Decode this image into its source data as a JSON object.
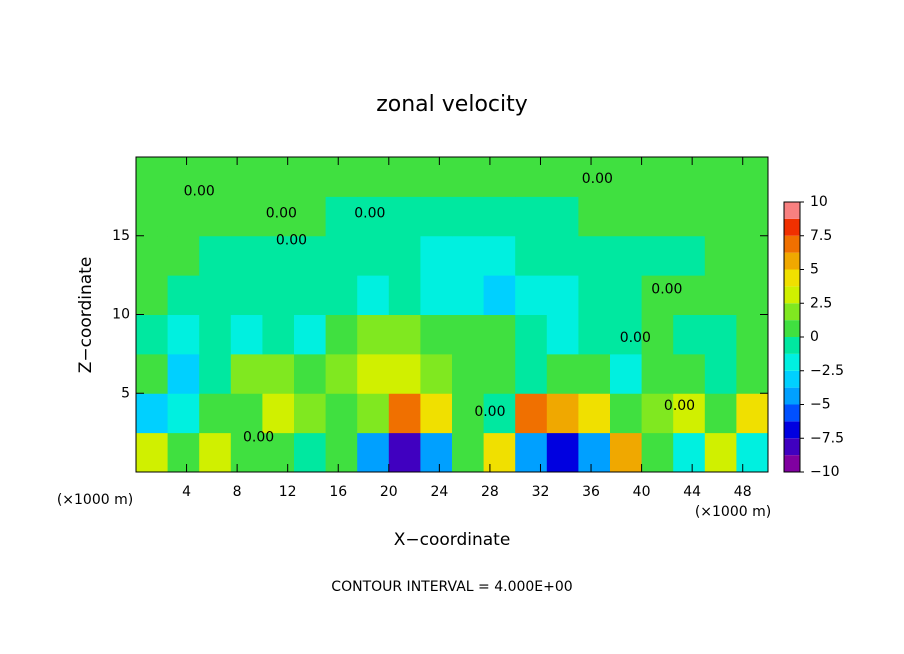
{
  "chart_data": {
    "type": "contour",
    "title": "zonal velocity",
    "xlabel": "X−coordinate",
    "ylabel": "Z−coordinate",
    "x_unit": "(×1000 m)",
    "y_unit": "(×1000 m)",
    "footer": "CONTOUR INTERVAL = 4.000E+00",
    "xlim": [
      0,
      50
    ],
    "ylim": [
      0,
      20
    ],
    "xticks": [
      4,
      8,
      12,
      16,
      20,
      24,
      28,
      32,
      36,
      40,
      44,
      48
    ],
    "yticks": [
      5,
      10,
      15
    ],
    "x": [
      1.25,
      3.75,
      6.25,
      8.75,
      11.25,
      13.75,
      16.25,
      18.75,
      21.25,
      23.75,
      26.25,
      28.75,
      31.25,
      33.75,
      36.25,
      38.75,
      41.25,
      43.75,
      46.25,
      48.75
    ],
    "y": [
      1.25,
      3.75,
      6.25,
      8.75,
      11.25,
      13.75,
      16.25,
      18.75
    ],
    "z": [
      [
        3,
        1,
        3,
        0,
        1,
        -1,
        0,
        -5,
        -8,
        -5,
        1,
        4,
        -5,
        -7,
        -4,
        5,
        0,
        -2,
        3,
        -2
      ],
      [
        -3,
        -2,
        0,
        1,
        3,
        2,
        0,
        2,
        7,
        4,
        1,
        -1,
        7,
        6,
        4,
        0,
        2,
        3,
        1,
        4
      ],
      [
        0,
        -3,
        -1,
        2,
        2,
        1,
        2,
        3,
        3,
        2,
        1,
        0,
        -1,
        1,
        0,
        -2,
        1,
        0,
        -1,
        0
      ],
      [
        -1,
        -2,
        -1,
        -2,
        -1,
        -2,
        1,
        2,
        2,
        1,
        1,
        0,
        -1,
        -2,
        -1,
        -1,
        0,
        -1,
        -1,
        0
      ],
      [
        0,
        -1,
        -1,
        -1,
        -1,
        -1,
        -1,
        -2,
        -1,
        -2,
        -2,
        -3,
        -2,
        -2,
        -1,
        -1,
        1,
        1,
        0,
        1
      ],
      [
        1,
        0,
        -1,
        -1,
        -1,
        -1,
        -1,
        -1,
        -1,
        -2,
        -2,
        -2,
        -1,
        -1,
        -1,
        -1,
        -1,
        -1,
        0,
        1
      ],
      [
        1,
        1,
        1,
        1,
        0,
        0,
        -1,
        -1,
        -1,
        -1,
        -1,
        -1,
        -1,
        -1,
        0,
        0,
        0,
        0,
        0,
        0
      ],
      [
        0,
        0,
        0,
        0,
        1,
        1,
        0,
        0,
        0,
        0,
        0,
        0,
        1,
        1,
        0,
        0,
        0,
        0,
        0,
        0
      ]
    ],
    "levels": [
      -10,
      -8.75,
      -7.5,
      -6.25,
      -5,
      -3.75,
      -2.5,
      -1.25,
      0,
      1.25,
      2.5,
      3.75,
      5,
      6.25,
      7.5,
      8.75,
      10
    ],
    "colors": [
      "#8000a0",
      "#4000c0",
      "#0000e0",
      "#0050ff",
      "#00a0ff",
      "#00d0ff",
      "#00f0e0",
      "#00e8a0",
      "#40e040",
      "#80e820",
      "#d0f000",
      "#f0e000",
      "#f0a800",
      "#f07000",
      "#f03000",
      "#f88080"
    ],
    "colorbar_ticks": [
      10,
      7.5,
      5,
      2.5,
      0,
      {
        "value": -2.5,
        "label": "−2.5"
      },
      {
        "value": -5,
        "label": "−5"
      },
      {
        "value": -7.5,
        "label": "−7.5"
      },
      {
        "value": -10,
        "label": "−10"
      }
    ],
    "contour_labels": [
      {
        "text": "0.00",
        "x": 5,
        "y": 17.8
      },
      {
        "text": "0.00",
        "x": 11.5,
        "y": 16.4
      },
      {
        "text": "0.00",
        "x": 12.3,
        "y": 14.7
      },
      {
        "text": "0.00",
        "x": 18.5,
        "y": 16.4
      },
      {
        "text": "0.00",
        "x": 36.5,
        "y": 18.6
      },
      {
        "text": "0.00",
        "x": 42,
        "y": 11.6
      },
      {
        "text": "0.00",
        "x": 39.5,
        "y": 8.5
      },
      {
        "text": "0.00",
        "x": 43,
        "y": 4.2
      },
      {
        "text": "0.00",
        "x": 28,
        "y": 3.8
      },
      {
        "text": "0.00",
        "x": 9.7,
        "y": 2.2
      }
    ]
  }
}
